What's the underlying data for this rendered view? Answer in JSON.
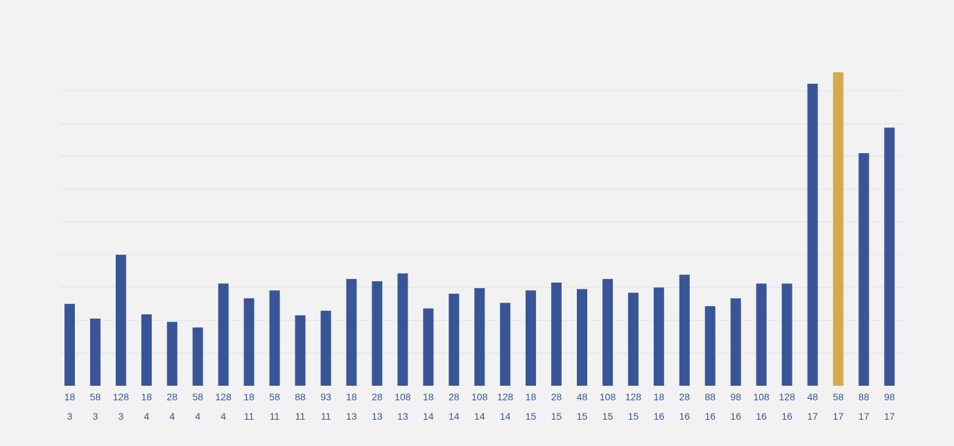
{
  "chart_data": {
    "type": "bar",
    "title": "",
    "xlabel": "",
    "ylabel": "",
    "grid": true,
    "legend": "none",
    "y_tick_labels_shown": false,
    "ylim": [
      0,
      9.7
    ],
    "gridline_count": 9,
    "categories": [
      {
        "top": "18",
        "bottom": "3"
      },
      {
        "top": "58",
        "bottom": "3"
      },
      {
        "top": "128",
        "bottom": "3"
      },
      {
        "top": "18",
        "bottom": "4"
      },
      {
        "top": "28",
        "bottom": "4"
      },
      {
        "top": "58",
        "bottom": "4"
      },
      {
        "top": "128",
        "bottom": "4"
      },
      {
        "top": "18",
        "bottom": "11"
      },
      {
        "top": "58",
        "bottom": "11"
      },
      {
        "top": "88",
        "bottom": "11"
      },
      {
        "top": "93",
        "bottom": "11"
      },
      {
        "top": "18",
        "bottom": "13"
      },
      {
        "top": "28",
        "bottom": "13"
      },
      {
        "top": "108",
        "bottom": "13"
      },
      {
        "top": "18",
        "bottom": "14"
      },
      {
        "top": "28",
        "bottom": "14"
      },
      {
        "top": "108",
        "bottom": "14"
      },
      {
        "top": "128",
        "bottom": "14"
      },
      {
        "top": "18",
        "bottom": "15"
      },
      {
        "top": "28",
        "bottom": "15"
      },
      {
        "top": "48",
        "bottom": "15"
      },
      {
        "top": "108",
        "bottom": "15"
      },
      {
        "top": "128",
        "bottom": "15"
      },
      {
        "top": "18",
        "bottom": "16"
      },
      {
        "top": "28",
        "bottom": "16"
      },
      {
        "top": "88",
        "bottom": "16"
      },
      {
        "top": "98",
        "bottom": "16"
      },
      {
        "top": "108",
        "bottom": "16"
      },
      {
        "top": "128",
        "bottom": "16"
      },
      {
        "top": "48",
        "bottom": "17"
      },
      {
        "top": "58",
        "bottom": "17"
      },
      {
        "top": "88",
        "bottom": "17"
      },
      {
        "top": "98",
        "bottom": "17"
      }
    ],
    "series": [
      {
        "values": [
          2.5,
          2.05,
          4.0,
          2.18,
          1.95,
          1.78,
          3.12,
          2.67,
          2.91,
          2.15,
          2.29,
          3.26,
          3.19,
          3.43,
          2.36,
          2.81,
          2.98,
          2.53,
          2.91,
          3.15,
          2.95,
          3.26,
          2.84,
          3.0,
          3.39,
          2.43,
          2.67,
          3.12,
          3.12,
          9.22,
          9.57,
          7.1,
          7.88
        ],
        "highlight_index": 30
      }
    ],
    "colors": {
      "bar": "#3a5597",
      "highlight": "#d3aa4c",
      "gridline": "#e3e3e6",
      "label": "#3a5597",
      "background": "#f2f2f3"
    }
  }
}
